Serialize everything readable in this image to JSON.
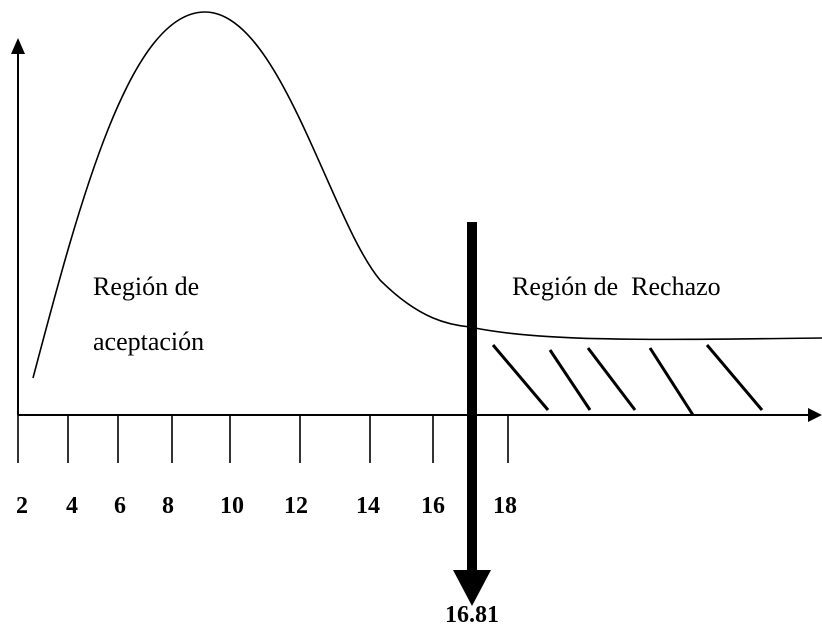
{
  "regions": {
    "acceptance": [
      "Región de",
      "aceptación"
    ],
    "rejection": "Región de  Rechazo"
  },
  "ticks": [
    2,
    4,
    6,
    8,
    10,
    12,
    14,
    16,
    18
  ],
  "critical_value": "16.81"
}
